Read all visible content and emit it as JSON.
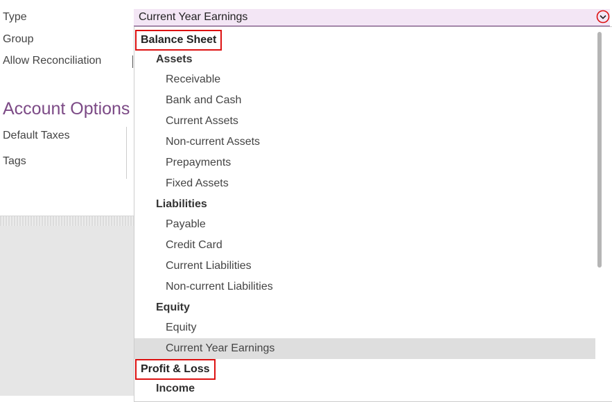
{
  "form": {
    "fields": [
      "Type",
      "Group",
      "Allow Reconciliation"
    ],
    "section_title": "Account Options",
    "section_fields": [
      "Default Taxes",
      "Tags"
    ]
  },
  "select": {
    "value": "Current Year Earnings"
  },
  "dropdown": {
    "sections": [
      {
        "title": "Balance Sheet",
        "groups": [
          {
            "title": "Assets",
            "items": [
              "Receivable",
              "Bank and Cash",
              "Current Assets",
              "Non-current Assets",
              "Prepayments",
              "Fixed Assets"
            ]
          },
          {
            "title": "Liabilities",
            "items": [
              "Payable",
              "Credit Card",
              "Current Liabilities",
              "Non-current Liabilities"
            ]
          },
          {
            "title": "Equity",
            "items": [
              "Equity",
              "Current Year Earnings"
            ]
          }
        ]
      },
      {
        "title": "Profit & Loss",
        "groups": [
          {
            "title": "Income",
            "items": []
          }
        ]
      }
    ]
  }
}
